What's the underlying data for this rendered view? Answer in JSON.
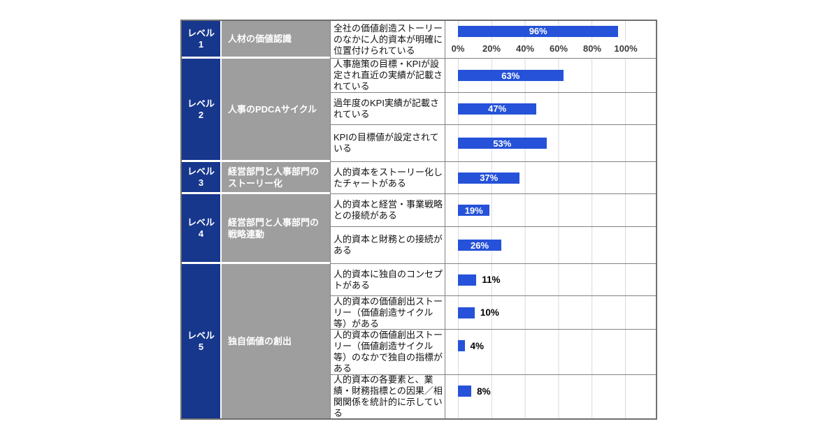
{
  "colors": {
    "level_bg": "#17378d",
    "category_bg": "#9e9e9e",
    "bar": "#2552d8",
    "gridline": "#d9d9d9",
    "inner_border": "#828282",
    "outer_border": "#6f6f6f",
    "group_separator": "#ffffff"
  },
  "axis": {
    "ticks": [
      "0%",
      "20%",
      "40%",
      "60%",
      "80%",
      "100%"
    ]
  },
  "groups": [
    {
      "level": {
        "label": "レベル",
        "number": "1"
      },
      "category": "人材の価値認識",
      "items": [
        {
          "label": "全社の価値創造ストーリーのなかに人的資本が明確に位置付けられている",
          "value": 96,
          "value_label": "96%",
          "label_position": "inside"
        }
      ]
    },
    {
      "level": {
        "label": "レベル",
        "number": "2"
      },
      "category": "人事のPDCAサイクル",
      "items": [
        {
          "label": "人事施策の目標・KPIが設定され直近の実績が記載されている",
          "value": 63,
          "value_label": "63%",
          "label_position": "inside"
        },
        {
          "label": "過年度のKPI実績が記載されている",
          "value": 47,
          "value_label": "47%",
          "label_position": "inside"
        },
        {
          "label": "KPIの目標値が設定されている",
          "value": 53,
          "value_label": "53%",
          "label_position": "inside"
        }
      ]
    },
    {
      "level": {
        "label": "レベル",
        "number": "3"
      },
      "category": "経営部門と人事部門のストーリー化",
      "items": [
        {
          "label": "人的資本をストーリー化したチャートがある",
          "value": 37,
          "value_label": "37%",
          "label_position": "inside"
        }
      ]
    },
    {
      "level": {
        "label": "レベル",
        "number": "4"
      },
      "category": "経営部門と人事部門の戦略連動",
      "items": [
        {
          "label": "人的資本と経営・事業戦略との接続がある",
          "value": 19,
          "value_label": "19%",
          "label_position": "inside"
        },
        {
          "label": "人的資本と財務との接続がある",
          "value": 26,
          "value_label": "26%",
          "label_position": "inside"
        }
      ]
    },
    {
      "level": {
        "label": "レベル",
        "number": "5"
      },
      "category": "独自価値の創出",
      "items": [
        {
          "label": "人的資本に独自のコンセプトがある",
          "value": 11,
          "value_label": "11%",
          "label_position": "outside"
        },
        {
          "label": "人的資本の価値創出ストーリー（価値創造サイクル等）がある",
          "value": 10,
          "value_label": "10%",
          "label_position": "outside"
        },
        {
          "label": "人的資本の価値創出ストーリー（価値創造サイクル等）のなかで独自の指標がある",
          "value": 4,
          "value_label": "4%",
          "label_position": "outside"
        },
        {
          "label": "人的資本の各要素と、業績・財務指標との因果／相関関係を統計的に示している",
          "value": 8,
          "value_label": "8%",
          "label_position": "outside"
        }
      ]
    }
  ],
  "chart_data": {
    "type": "bar",
    "orientation": "horizontal",
    "categories": [
      "全社の価値創造ストーリーのなかに人的資本が明確に位置付けられている",
      "人事施策の目標・KPIが設定され直近の実績が記載されている",
      "過年度のKPI実績が記載されている",
      "KPIの目標値が設定されている",
      "人的資本をストーリー化したチャートがある",
      "人的資本と経営・事業戦略との接続がある",
      "人的資本と財務との接続がある",
      "人的資本に独自のコンセプトがある",
      "人的資本の価値創出ストーリー（価値創造サイクル等）がある",
      "人的資本の価値創出ストーリー（価値創造サイクル等）のなかで独自の指標がある",
      "人的資本の各要素と、業績・財務指標との因果／相関関係を統計的に示している"
    ],
    "values": [
      96,
      63,
      47,
      53,
      37,
      19,
      26,
      11,
      10,
      4,
      8
    ],
    "unit": "%",
    "xlim": [
      0,
      100
    ],
    "x_ticks": [
      "0%",
      "20%",
      "40%",
      "60%",
      "80%",
      "100%"
    ],
    "grid": true,
    "legend": false,
    "bar_color": "#2552d8",
    "group_labels": [
      "レベル1 人材の価値認識",
      "レベル2 人事のPDCAサイクル",
      "レベル3 経営部門と人事部門のストーリー化",
      "レベル4 経営部門と人事部門の戦略連動",
      "レベル5 独自価値の創出"
    ]
  }
}
